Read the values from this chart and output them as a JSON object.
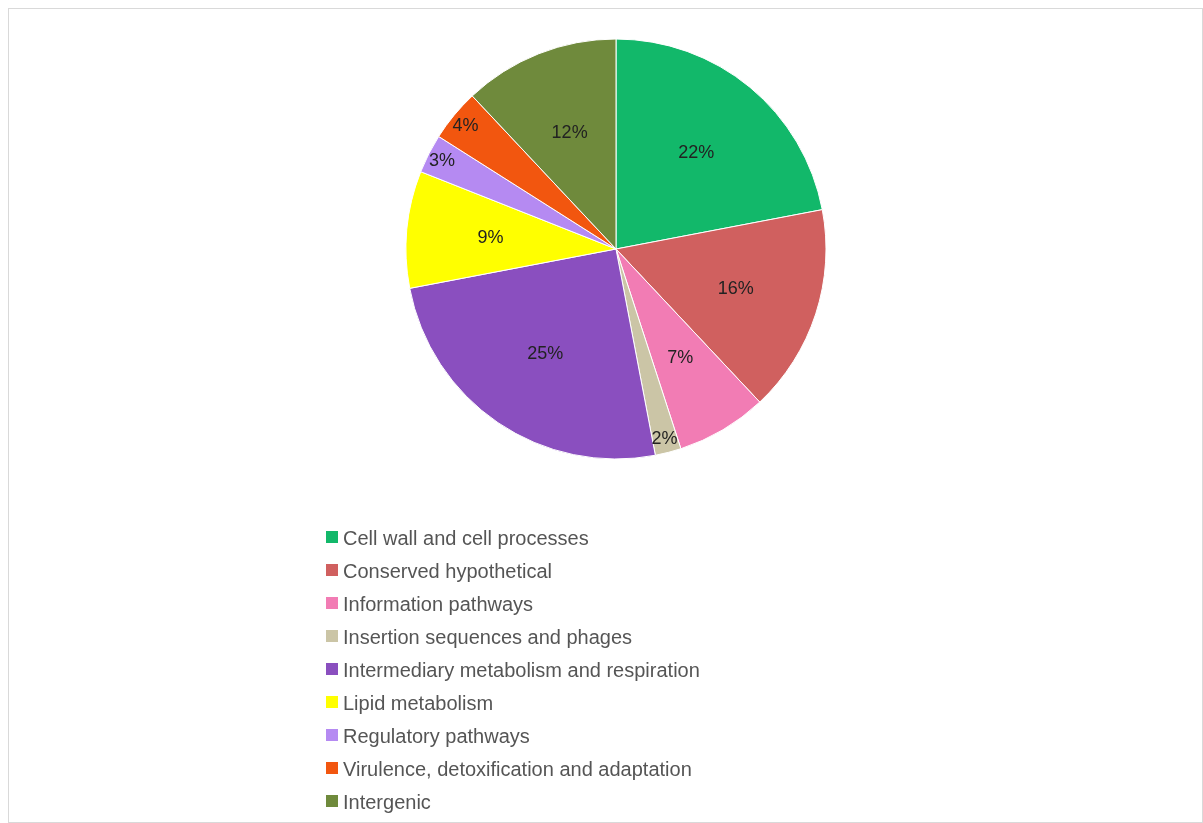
{
  "chart_data": {
    "type": "pie",
    "categories": [
      "Cell wall and cell processes",
      "Conserved hypothetical",
      "Information pathways",
      "Insertion sequences and phages",
      "Intermediary metabolism and respiration",
      "Lipid metabolism",
      "Regulatory pathways",
      "Virulence, detoxification and adaptation",
      "Intergenic"
    ],
    "values": [
      22,
      16,
      7,
      2,
      25,
      9,
      3,
      4,
      12
    ],
    "colors": [
      "#12b86a",
      "#d0605f",
      "#f27cb4",
      "#cbc5a6",
      "#8a4fbf",
      "#ffff00",
      "#b58af2",
      "#f2560f",
      "#6f8a3c"
    ],
    "value_labels": [
      "22%",
      "16%",
      "7%",
      "2%",
      "25%",
      "9%",
      "3%",
      "4%",
      "12%"
    ],
    "legend": "bottom"
  }
}
